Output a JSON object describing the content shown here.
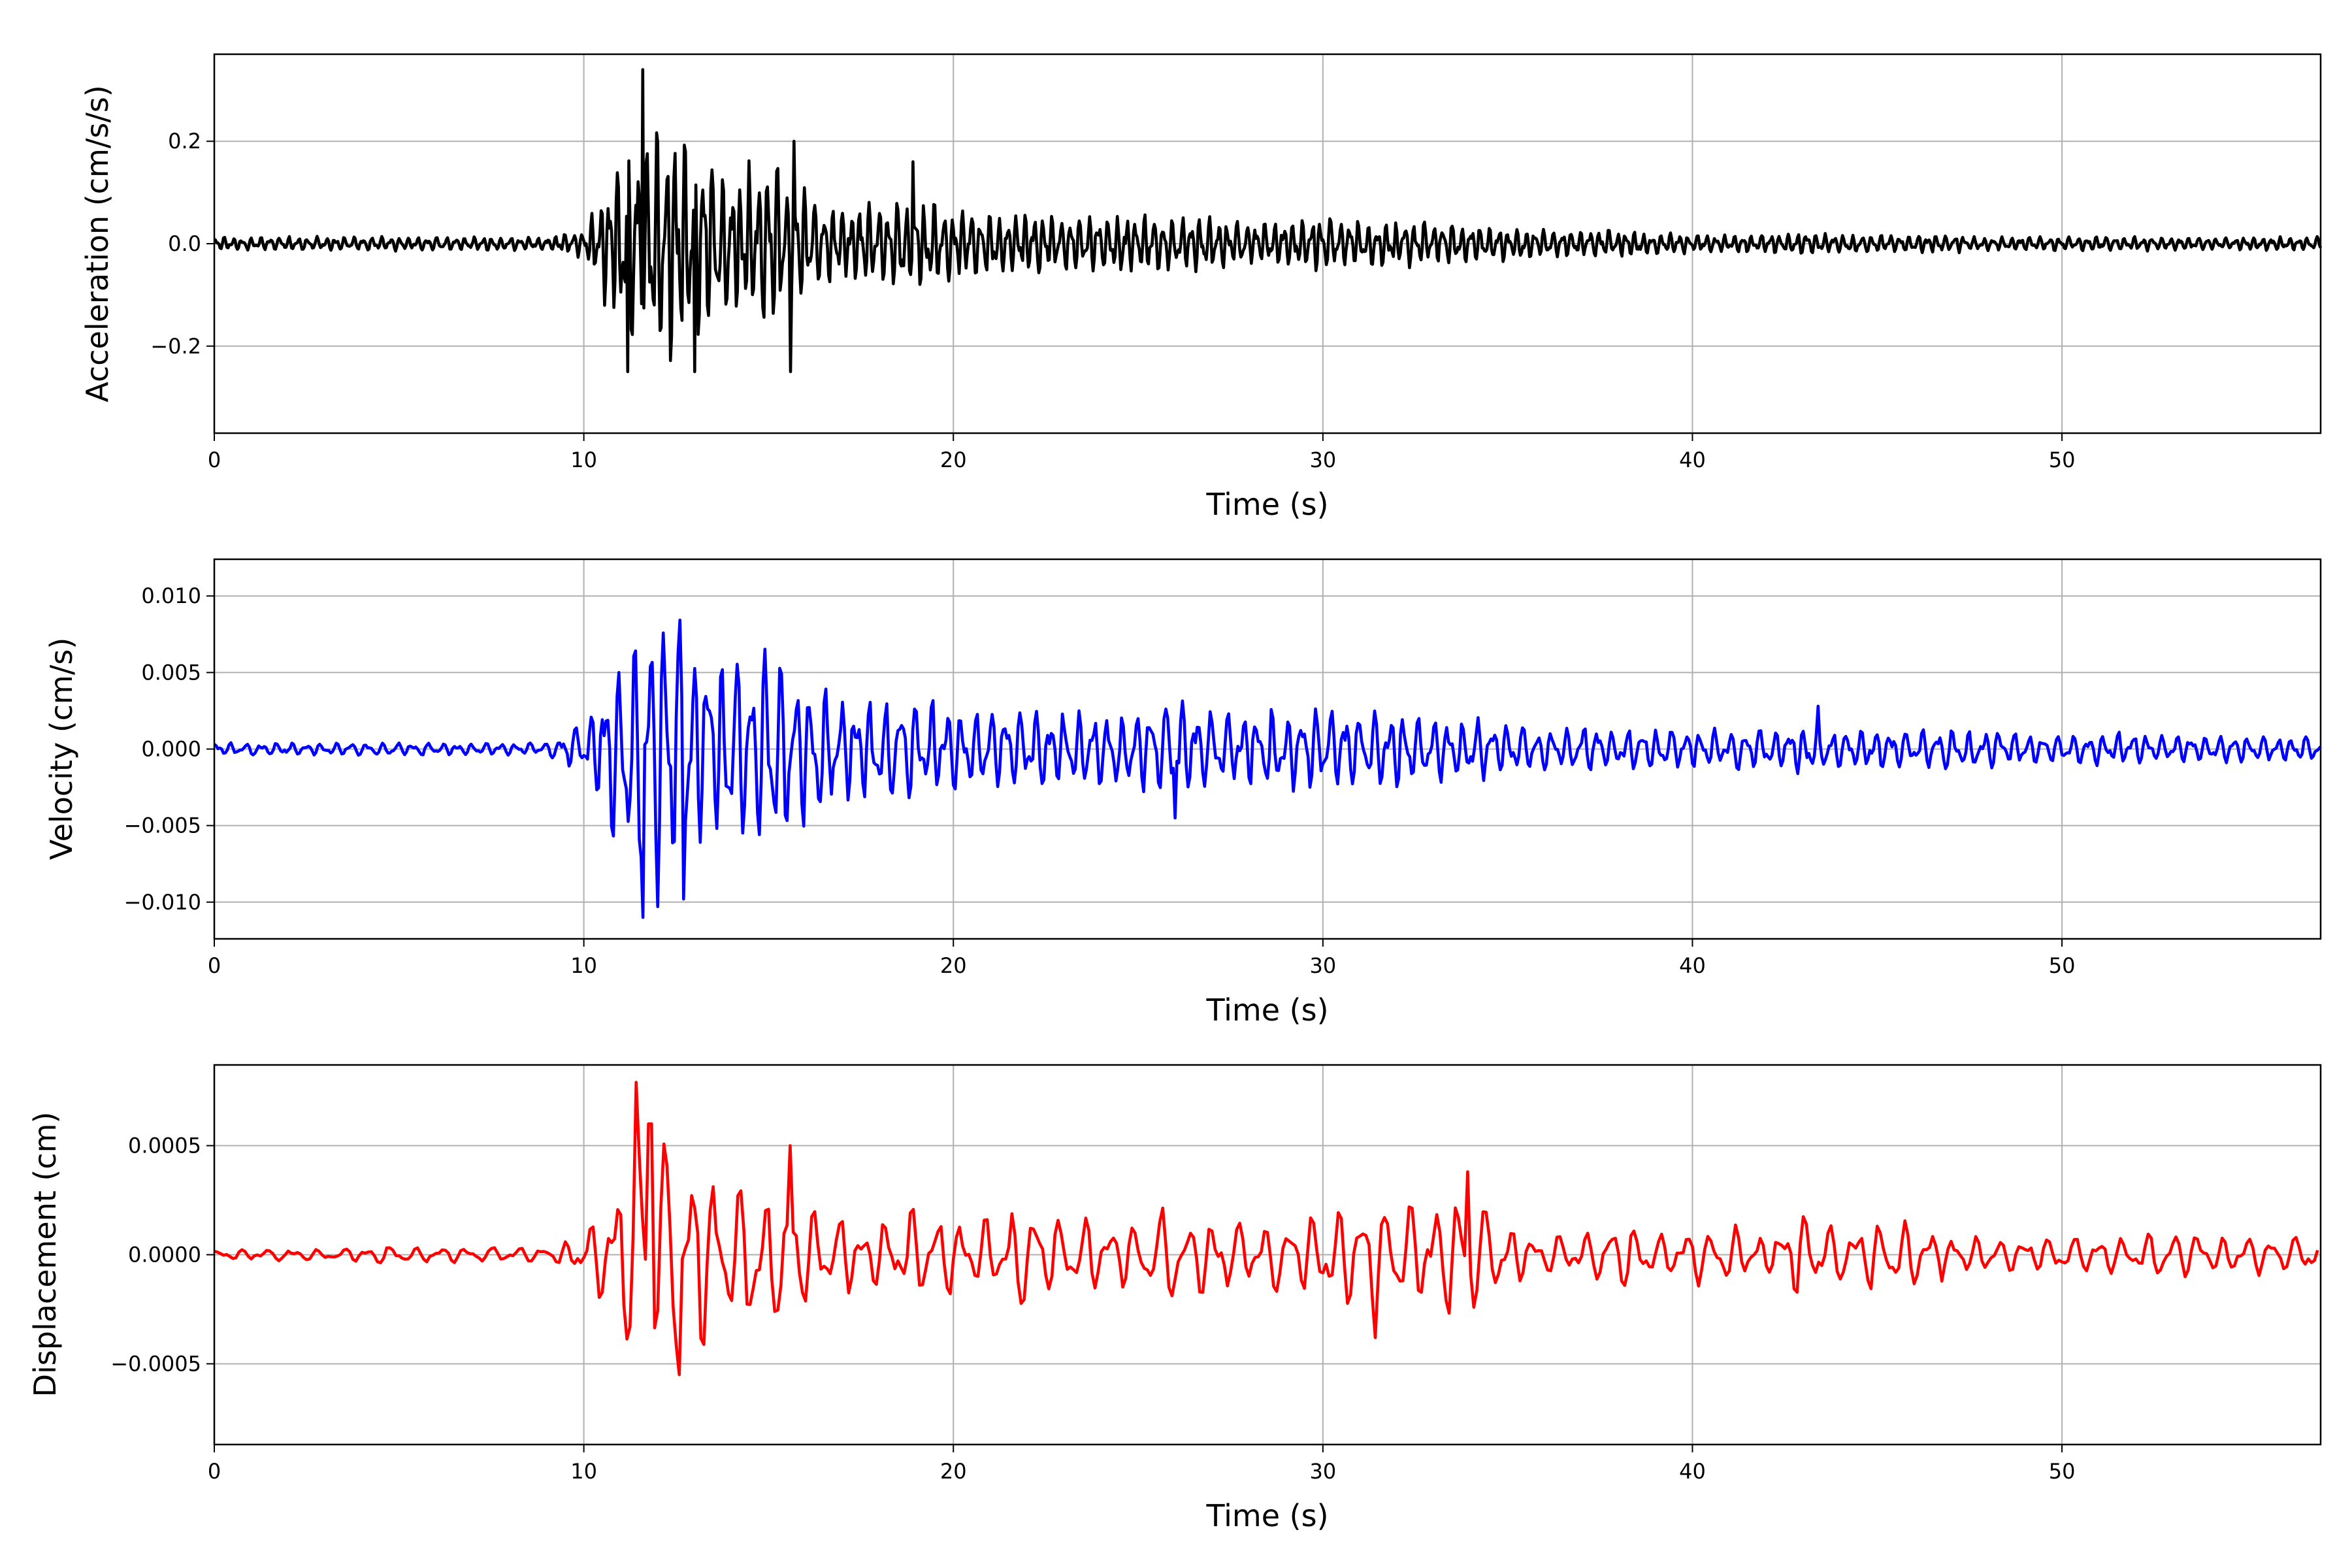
{
  "chart_data": [
    {
      "type": "line",
      "title": "",
      "xlabel": "Time (s)",
      "ylabel": "Acceleration (cm/s/s)",
      "color": "#000000",
      "xlim": [
        0,
        57
      ],
      "ylim": [
        -0.37,
        0.37
      ],
      "xticks": [
        0,
        10,
        20,
        30,
        40,
        50
      ],
      "xtick_labels": [
        "0",
        "10",
        "20",
        "30",
        "40",
        "50"
      ],
      "yticks": [
        -0.2,
        0.0,
        0.2
      ],
      "ytick_labels": [
        "−0.2",
        "0.0",
        "0.2"
      ],
      "grid": true,
      "dominant_freq_hz": 4,
      "envelope_per_second": [
        0.015,
        0.015,
        0.015,
        0.015,
        0.015,
        0.015,
        0.015,
        0.015,
        0.015,
        0.015,
        0.03,
        0.22,
        0.3,
        0.24,
        0.16,
        0.2,
        0.12,
        0.08,
        0.1,
        0.1,
        0.08,
        0.07,
        0.07,
        0.06,
        0.06,
        0.07,
        0.06,
        0.06,
        0.05,
        0.05,
        0.06,
        0.05,
        0.05,
        0.05,
        0.04,
        0.04,
        0.03,
        0.03,
        0.03,
        0.025,
        0.02,
        0.02,
        0.02,
        0.025,
        0.02,
        0.02,
        0.02,
        0.02,
        0.015,
        0.015,
        0.015,
        0.015,
        0.015,
        0.015,
        0.015,
        0.015,
        0.015,
        0.015
      ],
      "peaks": [
        [
          11.2,
          0.26
        ],
        [
          11.6,
          0.34
        ],
        [
          11.2,
          -0.25
        ],
        [
          13.0,
          -0.25
        ],
        [
          15.6,
          -0.25
        ],
        [
          15.7,
          0.2
        ],
        [
          18.9,
          0.16
        ]
      ]
    },
    {
      "type": "line",
      "title": "",
      "xlabel": "Time (s)",
      "ylabel": "Velocity (cm/s)",
      "color": "#0000ff",
      "xlim": [
        0,
        57
      ],
      "ylim": [
        -0.0124,
        0.0124
      ],
      "xticks": [
        0,
        10,
        20,
        30,
        40,
        50
      ],
      "xtick_labels": [
        "0",
        "10",
        "20",
        "30",
        "40",
        "50"
      ],
      "yticks": [
        -0.01,
        -0.005,
        0.0,
        0.005,
        0.01
      ],
      "ytick_labels": [
        "−0.010",
        "−0.005",
        "0.000",
        "0.005",
        "0.010"
      ],
      "grid": true,
      "dominant_freq_hz": 2.5,
      "envelope_per_second": [
        0.0005,
        0.0005,
        0.0005,
        0.0005,
        0.0005,
        0.0005,
        0.0005,
        0.0005,
        0.0005,
        0.0005,
        0.002,
        0.008,
        0.011,
        0.009,
        0.007,
        0.008,
        0.006,
        0.004,
        0.004,
        0.004,
        0.003,
        0.003,
        0.003,
        0.003,
        0.003,
        0.003,
        0.004,
        0.003,
        0.003,
        0.003,
        0.003,
        0.003,
        0.003,
        0.0025,
        0.0025,
        0.002,
        0.0015,
        0.002,
        0.0015,
        0.0015,
        0.0015,
        0.0015,
        0.0015,
        0.002,
        0.0015,
        0.0015,
        0.0015,
        0.0015,
        0.0015,
        0.0012,
        0.0012,
        0.0012,
        0.0012,
        0.0012,
        0.001,
        0.001,
        0.001,
        0.001
      ],
      "peaks": [
        [
          11.6,
          0.0112
        ],
        [
          11.6,
          -0.011
        ],
        [
          12.7,
          -0.0098
        ],
        [
          26.0,
          -0.0045
        ],
        [
          43.4,
          0.0028
        ]
      ]
    },
    {
      "type": "line",
      "title": "",
      "xlabel": "Time (s)",
      "ylabel": "Displacement (cm)",
      "color": "#ff0000",
      "xlim": [
        0,
        57
      ],
      "ylim": [
        -0.00087,
        0.00087
      ],
      "xticks": [
        0,
        10,
        20,
        30,
        40,
        50
      ],
      "xtick_labels": [
        "0",
        "10",
        "20",
        "30",
        "40",
        "50"
      ],
      "yticks": [
        -0.0005,
        0.0,
        0.0005
      ],
      "ytick_labels": [
        "−0.0005",
        "0.0000",
        "0.0005"
      ],
      "grid": true,
      "dominant_freq_hz": 1.5,
      "envelope_per_second": [
        3e-05,
        3e-05,
        3e-05,
        3e-05,
        4e-05,
        5e-05,
        4e-05,
        4e-05,
        4e-05,
        4e-05,
        0.0001,
        0.0005,
        0.0007,
        0.0005,
        0.0004,
        0.0004,
        0.0003,
        0.0002,
        0.0002,
        0.00025,
        0.0002,
        0.0002,
        0.0003,
        0.0002,
        0.0002,
        0.0002,
        0.00025,
        0.0002,
        0.0002,
        0.0002,
        0.00025,
        0.0003,
        0.00025,
        0.0003,
        0.00035,
        0.00015,
        0.0001,
        0.0001,
        0.0002,
        0.0001,
        0.00015,
        0.00015,
        0.0001,
        0.00025,
        0.00015,
        0.0002,
        0.0002,
        0.0001,
        0.0001,
        0.0001,
        0.0001,
        0.0001,
        0.0001,
        0.00015,
        0.0001,
        0.0001,
        0.0001,
        0.0001
      ],
      "peaks": [
        [
          11.4,
          0.00079
        ],
        [
          11.8,
          0.0006
        ],
        [
          12.6,
          -0.00055
        ],
        [
          15.6,
          0.0005
        ],
        [
          31.4,
          -0.00038
        ],
        [
          33.9,
          0.00038
        ]
      ]
    }
  ]
}
